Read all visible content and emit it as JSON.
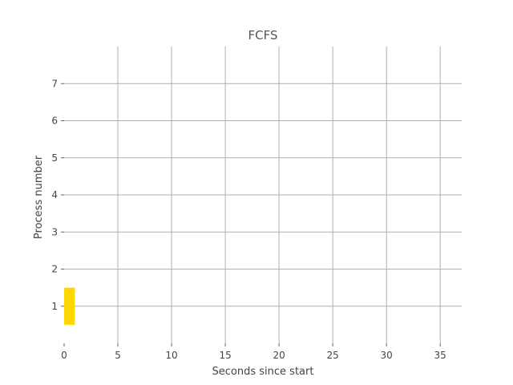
{
  "chart_data": {
    "type": "bar",
    "orientation": "horizontal",
    "title": "FCFS",
    "xlabel": "Seconds since start",
    "ylabel": "Process number",
    "xlim": [
      0,
      37
    ],
    "ylim": [
      0,
      8
    ],
    "xticks": [
      0,
      5,
      10,
      15,
      20,
      25,
      30,
      35
    ],
    "yticks": [
      1,
      2,
      3,
      4,
      5,
      6,
      7
    ],
    "grid": true,
    "bars": [
      {
        "process": 1,
        "start": 0,
        "duration": 1,
        "color": "#ffd700"
      }
    ]
  }
}
